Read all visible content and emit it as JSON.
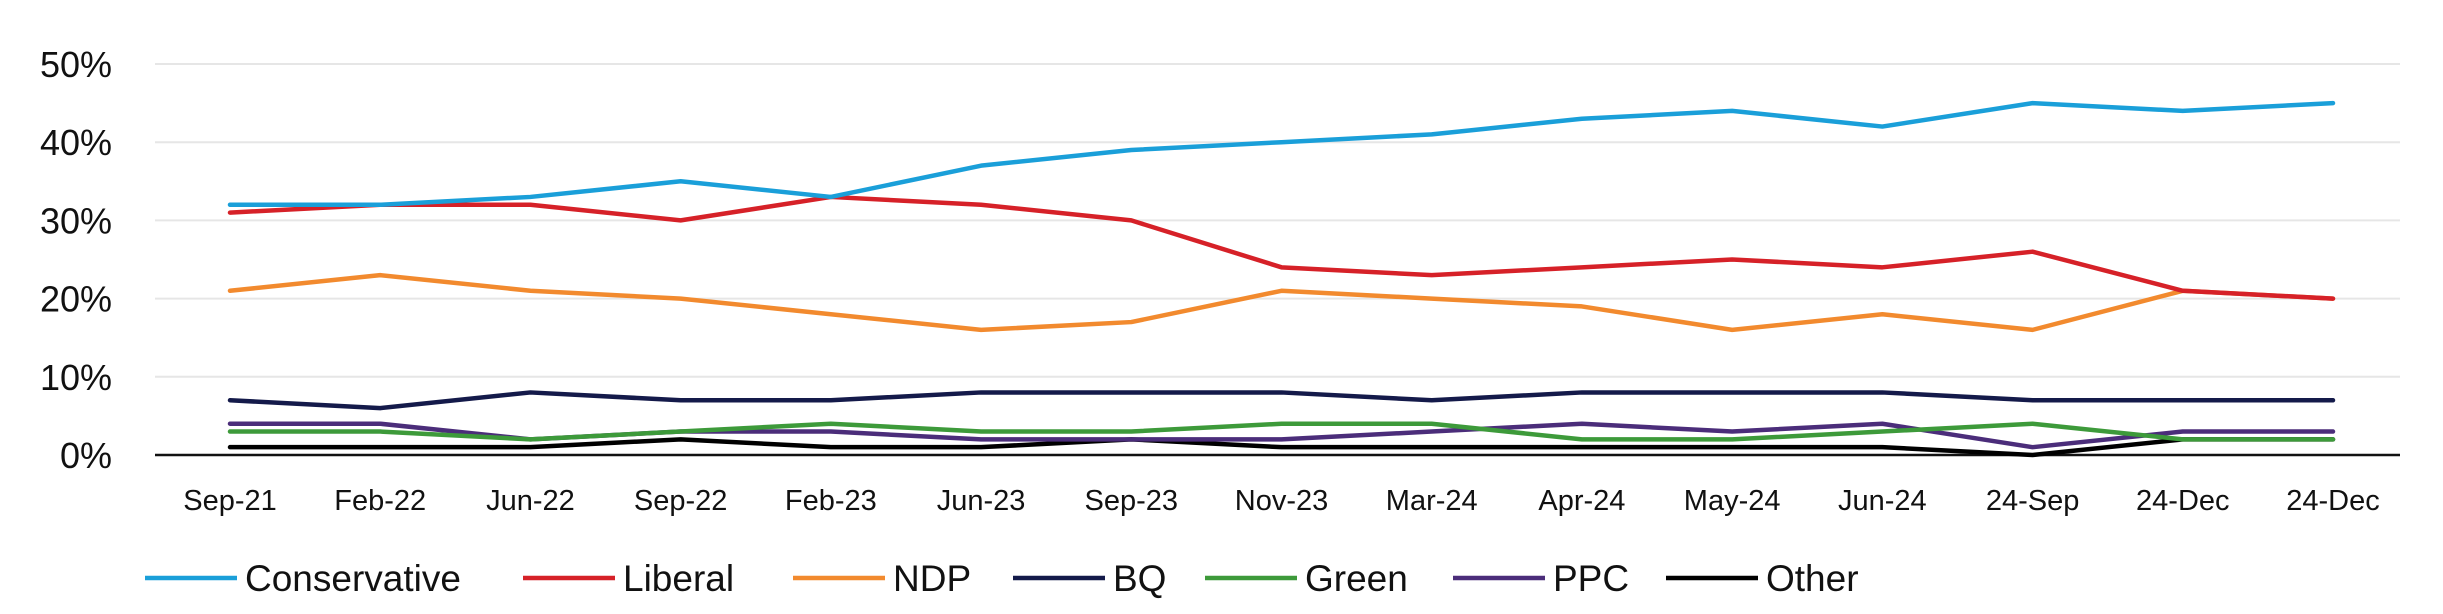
{
  "chart_data": {
    "type": "line",
    "title": "",
    "xlabel": "",
    "ylabel": "",
    "ylim": [
      0,
      50
    ],
    "y_ticks": [
      "0%",
      "10%",
      "20%",
      "30%",
      "40%",
      "50%"
    ],
    "grid": "horizontal",
    "legend_position": "bottom",
    "categories": [
      "Sep-21",
      "Feb-22",
      "Jun-22",
      "Sep-22",
      "Feb-23",
      "Jun-23",
      "Sep-23",
      "Nov-23",
      "Mar-24",
      "Apr-24",
      "May-24",
      "Jun-24",
      "24-Sep",
      "24-Dec",
      "24-Dec"
    ],
    "series": [
      {
        "name": "Conservative",
        "color": "#1a9fd9",
        "values": [
          32,
          32,
          33,
          35,
          33,
          37,
          39,
          40,
          41,
          43,
          44,
          42,
          45,
          44,
          45
        ]
      },
      {
        "name": "Liberal",
        "color": "#d62128",
        "values": [
          31,
          32,
          32,
          30,
          33,
          32,
          30,
          24,
          23,
          24,
          25,
          24,
          26,
          21,
          20
        ]
      },
      {
        "name": "NDP",
        "color": "#f28a2e",
        "values": [
          21,
          23,
          21,
          20,
          18,
          16,
          17,
          21,
          20,
          19,
          16,
          18,
          16,
          21,
          20
        ]
      },
      {
        "name": "BQ",
        "color": "#141a4a",
        "values": [
          7,
          6,
          8,
          7,
          7,
          8,
          8,
          8,
          7,
          8,
          8,
          8,
          7,
          7,
          7
        ]
      },
      {
        "name": "Green",
        "color": "#3d9a3a",
        "values": [
          3,
          3,
          2,
          3,
          4,
          3,
          3,
          4,
          4,
          2,
          2,
          3,
          4,
          2,
          2
        ]
      },
      {
        "name": "PPC",
        "color": "#4b2d7a",
        "values": [
          4,
          4,
          2,
          3,
          3,
          2,
          2,
          2,
          3,
          4,
          3,
          4,
          1,
          3,
          3
        ]
      },
      {
        "name": "Other",
        "color": "#000000",
        "values": [
          1,
          1,
          1,
          2,
          1,
          1,
          2,
          1,
          1,
          1,
          1,
          1,
          0,
          2,
          2
        ]
      }
    ]
  }
}
